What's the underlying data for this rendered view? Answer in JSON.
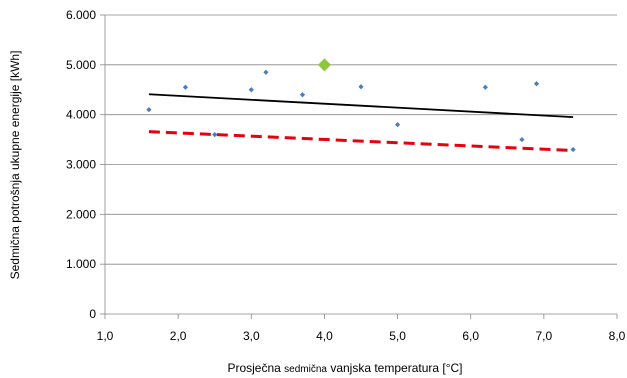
{
  "chart_data": {
    "type": "scatter",
    "xlabel_parts": [
      "Prosječna ",
      "sedmična",
      " vanjska temperatura [°C]"
    ],
    "ylabel": "Sedmična potrošnja ukupne energije [kWh]",
    "xlim": [
      1.0,
      8.0
    ],
    "ylim": [
      0,
      6000
    ],
    "x_ticks": [
      "1,0",
      "2,0",
      "3,0",
      "4,0",
      "5,0",
      "6,0",
      "7,0",
      "8,0"
    ],
    "y_ticks": [
      "0",
      "1.000",
      "2.000",
      "3.000",
      "4.000",
      "5.000",
      "6.000"
    ],
    "grid": "horizontal",
    "points": [
      {
        "x": 1.6,
        "y": 4100
      },
      {
        "x": 2.1,
        "y": 4550
      },
      {
        "x": 2.5,
        "y": 3600
      },
      {
        "x": 3.0,
        "y": 4500
      },
      {
        "x": 3.2,
        "y": 4850
      },
      {
        "x": 3.7,
        "y": 4400
      },
      {
        "x": 4.5,
        "y": 4560
      },
      {
        "x": 5.0,
        "y": 3800
      },
      {
        "x": 6.2,
        "y": 4550
      },
      {
        "x": 6.7,
        "y": 3500
      },
      {
        "x": 6.9,
        "y": 4620
      },
      {
        "x": 7.4,
        "y": 3300
      }
    ],
    "highlight_point": {
      "x": 4.0,
      "y": 5000
    },
    "lines": [
      {
        "x": [
          1.6,
          7.4
        ],
        "y": [
          4410,
          3950
        ],
        "style": "solid"
      },
      {
        "x": [
          1.6,
          7.4
        ],
        "y": [
          3660,
          3280
        ],
        "style": "dashed"
      }
    ],
    "colors": {
      "points": "#4a7ebb",
      "highlight": "#8dc63f",
      "solid_line": "#000000",
      "dashed_line": "#e8000d",
      "grid": "#888888"
    }
  }
}
